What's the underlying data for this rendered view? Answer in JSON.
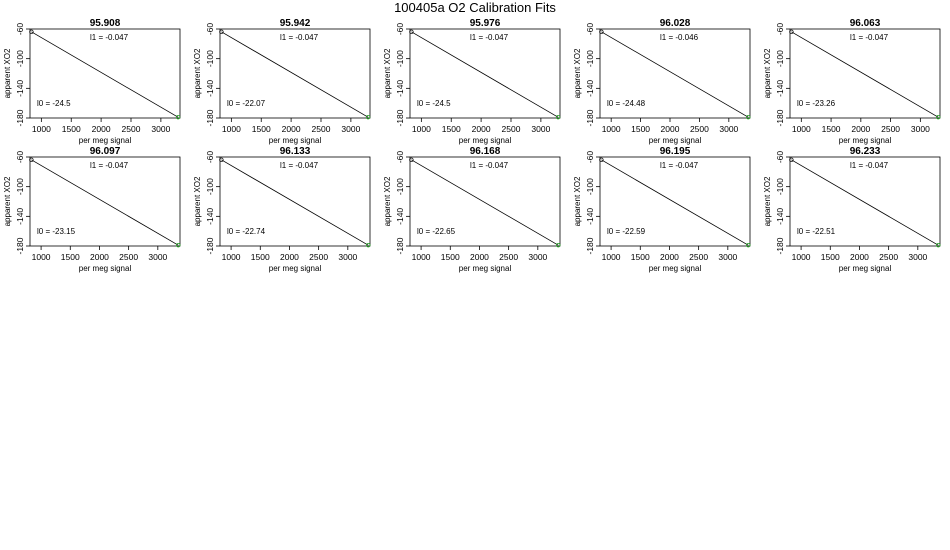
{
  "page_title": "100405a   O2 Calibration Fits",
  "chart_data": [
    {
      "type": "scatter",
      "title": "95.908",
      "xlabel": "per meg signal",
      "ylabel": "apparent XO2",
      "xlim": [
        810,
        3320
      ],
      "ylim": [
        -60,
        -180
      ],
      "xticks": [
        1000,
        1500,
        2000,
        2500,
        3000
      ],
      "yticks": [
        -60,
        -100,
        -140,
        -180
      ],
      "l1_label": "l1 =  -0.047",
      "l0_label": "l0 =  -24.5",
      "points_black": [
        [
          834,
          -63.8
        ]
      ],
      "points_green": [
        [
          3288,
          -178.9
        ]
      ],
      "fit": [
        [
          834,
          -63.8
        ],
        [
          3288,
          -178.9
        ]
      ]
    },
    {
      "type": "scatter",
      "title": "95.942",
      "xlabel": "per meg signal",
      "ylabel": "apparent XO2",
      "xlim": [
        810,
        3320
      ],
      "ylim": [
        -60,
        -180
      ],
      "xticks": [
        1000,
        1500,
        2000,
        2500,
        3000
      ],
      "yticks": [
        -60,
        -100,
        -140,
        -180
      ],
      "l1_label": "l1 =  -0.047",
      "l0_label": "l0 =  -22.07",
      "points_black": [
        [
          834,
          -63.8
        ]
      ],
      "points_green": [
        [
          3288,
          -178.9
        ]
      ],
      "fit": [
        [
          834,
          -63.8
        ],
        [
          3288,
          -178.9
        ]
      ]
    },
    {
      "type": "scatter",
      "title": "95.976",
      "xlabel": "per meg signal",
      "ylabel": "apparent XO2",
      "xlim": [
        810,
        3320
      ],
      "ylim": [
        -60,
        -180
      ],
      "xticks": [
        1000,
        1500,
        2000,
        2500,
        3000
      ],
      "yticks": [
        -60,
        -100,
        -140,
        -180
      ],
      "l1_label": "l1 =  -0.047",
      "l0_label": "l0 =  -24.5",
      "points_black": [
        [
          834,
          -63.8
        ]
      ],
      "points_green": [
        [
          3288,
          -178.9
        ]
      ],
      "fit": [
        [
          834,
          -63.8
        ],
        [
          3288,
          -178.9
        ]
      ]
    },
    {
      "type": "scatter",
      "title": "96.028",
      "xlabel": "per meg signal",
      "ylabel": "apparent XO2",
      "xlim": [
        810,
        3360
      ],
      "ylim": [
        -60,
        -180
      ],
      "xticks": [
        1000,
        1500,
        2000,
        2500,
        3000
      ],
      "yticks": [
        -60,
        -100,
        -140,
        -180
      ],
      "l1_label": "l1 =  -0.046",
      "l0_label": "l0 =  -24.48",
      "points_black": [
        [
          834,
          -63.8
        ]
      ],
      "points_green": [
        [
          3330,
          -178.9
        ]
      ],
      "fit": [
        [
          834,
          -63.8
        ],
        [
          3330,
          -178.9
        ]
      ]
    },
    {
      "type": "scatter",
      "title": "96.063",
      "xlabel": "per meg signal",
      "ylabel": "apparent XO2",
      "xlim": [
        810,
        3330
      ],
      "ylim": [
        -60,
        -180
      ],
      "xticks": [
        1000,
        1500,
        2000,
        2500,
        3000
      ],
      "yticks": [
        -60,
        -100,
        -140,
        -180
      ],
      "l1_label": "l1 =  -0.047",
      "l0_label": "l0 =  -23.26",
      "points_black": [
        [
          834,
          -63.8
        ]
      ],
      "points_green": [
        [
          3300,
          -178.9
        ]
      ],
      "fit": [
        [
          834,
          -63.8
        ],
        [
          3300,
          -178.9
        ]
      ]
    },
    {
      "type": "scatter",
      "title": "96.097",
      "xlabel": "per meg signal",
      "ylabel": "apparent XO2",
      "xlim": [
        810,
        3380
      ],
      "ylim": [
        -60,
        -180
      ],
      "xticks": [
        1000,
        1500,
        2000,
        2500,
        3000
      ],
      "yticks": [
        -60,
        -100,
        -140,
        -180
      ],
      "l1_label": "l1 =  -0.047",
      "l0_label": "l0 =  -23.15",
      "points_black": [
        [
          834,
          -63.8
        ]
      ],
      "points_green": [
        [
          3350,
          -178.9
        ]
      ],
      "fit": [
        [
          834,
          -63.8
        ],
        [
          3350,
          -178.9
        ]
      ]
    },
    {
      "type": "scatter",
      "title": "96.133",
      "xlabel": "per meg signal",
      "ylabel": "apparent XO2",
      "xlim": [
        810,
        3380
      ],
      "ylim": [
        -60,
        -180
      ],
      "xticks": [
        1000,
        1500,
        2000,
        2500,
        3000
      ],
      "yticks": [
        -60,
        -100,
        -140,
        -180
      ],
      "l1_label": "l1 =  -0.047",
      "l0_label": "l0 =  -22.74",
      "points_black": [
        [
          834,
          -63.8
        ]
      ],
      "points_green": [
        [
          3350,
          -178.9
        ]
      ],
      "fit": [
        [
          834,
          -63.8
        ],
        [
          3350,
          -178.9
        ]
      ]
    },
    {
      "type": "scatter",
      "title": "96.168",
      "xlabel": "per meg signal",
      "ylabel": "apparent XO2",
      "xlim": [
        810,
        3380
      ],
      "ylim": [
        -60,
        -180
      ],
      "xticks": [
        1000,
        1500,
        2000,
        2500,
        3000
      ],
      "yticks": [
        -60,
        -100,
        -140,
        -180
      ],
      "l1_label": "l1 =  -0.047",
      "l0_label": "l0 =  -22.65",
      "points_black": [
        [
          834,
          -63.8
        ]
      ],
      "points_green": [
        [
          3350,
          -178.9
        ]
      ],
      "fit": [
        [
          834,
          -63.8
        ],
        [
          3350,
          -178.9
        ]
      ]
    },
    {
      "type": "scatter",
      "title": "96.195",
      "xlabel": "per meg signal",
      "ylabel": "apparent XO2",
      "xlim": [
        810,
        3380
      ],
      "ylim": [
        -60,
        -180
      ],
      "xticks": [
        1000,
        1500,
        2000,
        2500,
        3000
      ],
      "yticks": [
        -60,
        -100,
        -140,
        -180
      ],
      "l1_label": "l1 =  -0.047",
      "l0_label": "l0 =  -22.59",
      "points_black": [
        [
          834,
          -63.8
        ]
      ],
      "points_green": [
        [
          3350,
          -178.9
        ]
      ],
      "fit": [
        [
          834,
          -63.8
        ],
        [
          3350,
          -178.9
        ]
      ]
    },
    {
      "type": "scatter",
      "title": "96.233",
      "xlabel": "per meg signal",
      "ylabel": "apparent XO2",
      "xlim": [
        810,
        3380
      ],
      "ylim": [
        -60,
        -180
      ],
      "xticks": [
        1000,
        1500,
        2000,
        2500,
        3000
      ],
      "yticks": [
        -60,
        -100,
        -140,
        -180
      ],
      "l1_label": "l1 =  -0.047",
      "l0_label": "l0 =  -22.51",
      "points_black": [
        [
          834,
          -63.8
        ]
      ],
      "points_green": [
        [
          3350,
          -178.9
        ]
      ],
      "fit": [
        [
          834,
          -63.8
        ],
        [
          3350,
          -178.9
        ]
      ]
    }
  ],
  "colors": {
    "green_points": "#22aa22",
    "ink": "#000000"
  }
}
